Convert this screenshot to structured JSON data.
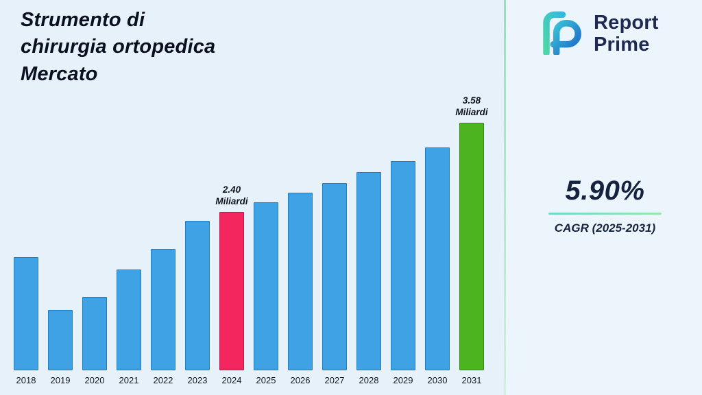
{
  "page": {
    "background": "#e7f1fa",
    "panel_background": "#edf5fc",
    "divider_color": "#8ae7b4"
  },
  "header": {
    "title_lines": [
      "Strumento di",
      "chirurgia ortopedica",
      "Mercato"
    ]
  },
  "logo": {
    "line1": "Report",
    "line2": "Prime",
    "icon": "report-prime-logo"
  },
  "cagr": {
    "value": "5.90%",
    "label": "CAGR (2025-2031)"
  },
  "chart_data": {
    "type": "bar",
    "title": "Strumento di chirurgia ortopedica Mercato",
    "unit": "Miliardi",
    "categories": [
      "2018",
      "2019",
      "2020",
      "2021",
      "2022",
      "2023",
      "2024",
      "2025",
      "2026",
      "2027",
      "2028",
      "2029",
      "2030",
      "2031"
    ],
    "values": [
      1.8,
      1.1,
      1.27,
      1.64,
      1.91,
      2.28,
      2.4,
      2.53,
      2.65,
      2.78,
      2.93,
      3.07,
      3.25,
      3.58
    ],
    "value_axis_min": 0.3,
    "ylim": [
      0.3,
      4.0
    ],
    "grid": false,
    "legend": "none",
    "colors": {
      "default_fill": "#3fa2e4",
      "default_border": "#1f7ec2",
      "highlight_2024_fill": "#f4265e",
      "highlight_2024_border": "#c2134a",
      "highlight_2031_fill": "#4cb41e",
      "highlight_2031_border": "#3a8c15"
    },
    "annotations": [
      {
        "category": "2024",
        "value_label": "2.40",
        "unit_label": "Miliardi"
      },
      {
        "category": "2031",
        "value_label": "3.58",
        "unit_label": "Miliardi"
      }
    ]
  }
}
